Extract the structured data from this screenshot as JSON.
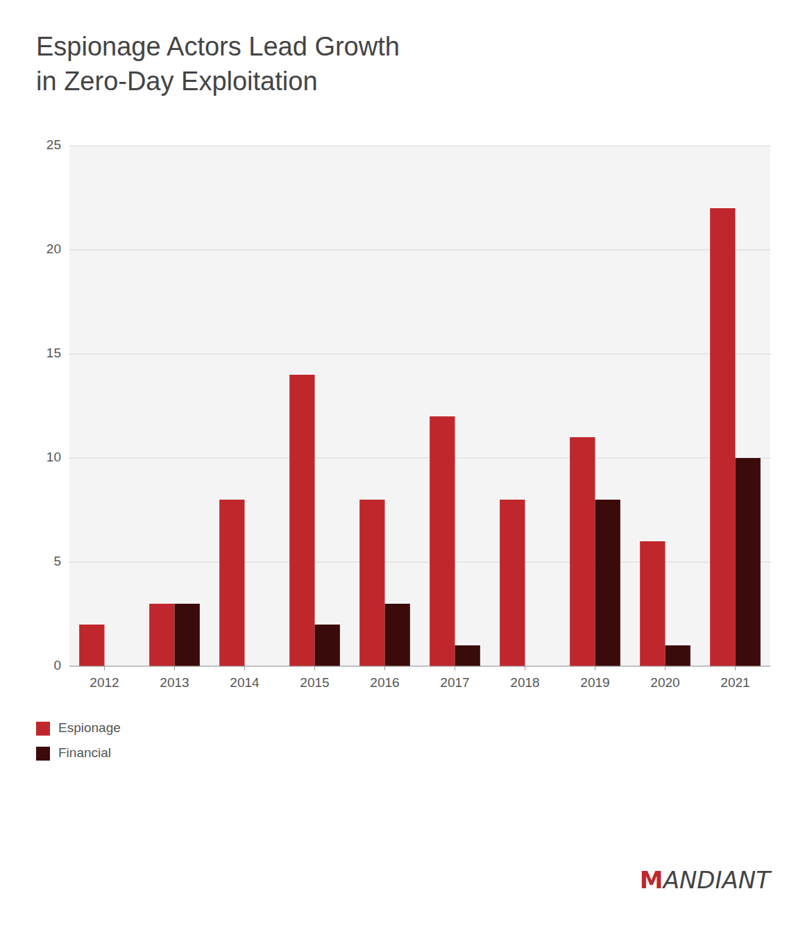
{
  "chart_data": {
    "type": "bar",
    "title": "Espionage Actors Lead Growth\nin Zero-Day Exploitation",
    "categories": [
      "2012",
      "2013",
      "2014",
      "2015",
      "2016",
      "2017",
      "2018",
      "2019",
      "2020",
      "2021"
    ],
    "series": [
      {
        "name": "Espionage",
        "color": "#C0272D",
        "values": [
          2,
          3,
          8,
          14,
          8,
          12,
          8,
          11,
          6,
          22
        ]
      },
      {
        "name": "Financial",
        "color": "#3B0B0B",
        "values": [
          0,
          3,
          0,
          2,
          3,
          1,
          0,
          8,
          1,
          10
        ]
      }
    ],
    "ylim": [
      0,
      25
    ],
    "yticks": [
      0,
      5,
      10,
      15,
      20,
      25
    ],
    "grid": true,
    "legend": "below",
    "annotations": [
      "MANDIANT"
    ]
  }
}
